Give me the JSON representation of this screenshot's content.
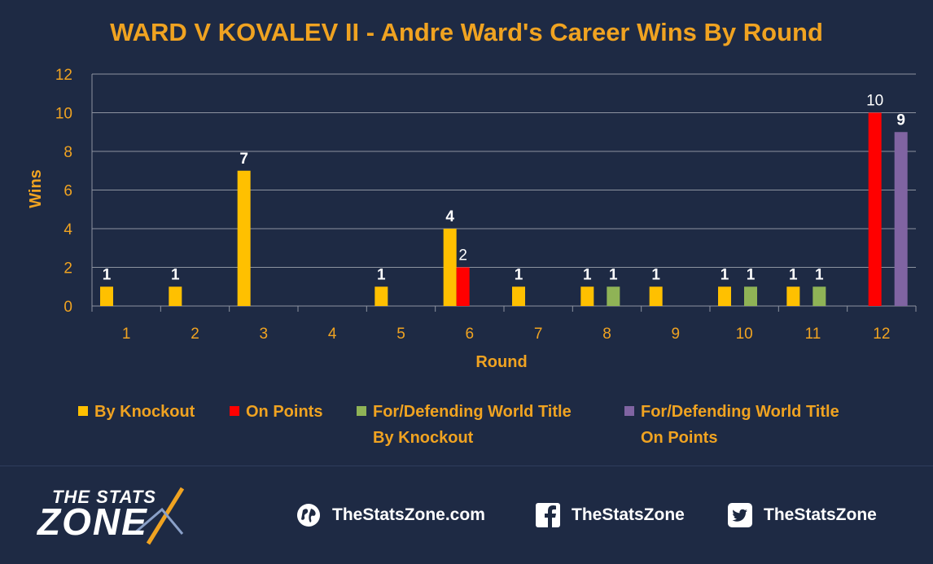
{
  "chart_data": {
    "type": "bar",
    "title": "WARD V KOVALEV II - Andre Ward's Career Wins By Round",
    "xlabel": "Round",
    "ylabel": "Wins",
    "categories": [
      "1",
      "2",
      "3",
      "4",
      "5",
      "6",
      "7",
      "8",
      "9",
      "10",
      "11",
      "12"
    ],
    "ylim": [
      0,
      12
    ],
    "yticks": [
      0,
      2,
      4,
      6,
      8,
      10,
      12
    ],
    "grid": true,
    "legend_position": "bottom",
    "series": [
      {
        "name": "By Knockout",
        "color": "#ffc000",
        "label_color": "#ffffff",
        "values": [
          1,
          1,
          7,
          0,
          1,
          4,
          1,
          1,
          1,
          1,
          1,
          0
        ]
      },
      {
        "name": "On Points",
        "color": "#ff0000",
        "label_color": "#ffffff",
        "values": [
          0,
          0,
          0,
          0,
          0,
          2,
          0,
          0,
          0,
          0,
          0,
          10
        ]
      },
      {
        "name": "For/Defending World Title By Knockout",
        "color": "#8fb356",
        "label_color": "#ffffff",
        "values": [
          0,
          0,
          0,
          0,
          0,
          0,
          0,
          1,
          0,
          1,
          1,
          0
        ]
      },
      {
        "name": "For/Defending World Title On Points",
        "color": "#8064a2",
        "label_color": "#ffffff",
        "values": [
          0,
          0,
          0,
          0,
          0,
          0,
          0,
          0,
          0,
          0,
          0,
          9
        ]
      }
    ],
    "legend_lines": [
      [
        "By Knockout"
      ],
      [
        "On Points"
      ],
      [
        "For/Defending World Title",
        "By Knockout"
      ],
      [
        "For/Defending World Title",
        "On Points"
      ]
    ]
  },
  "footer": {
    "logo_top": "THE STATS",
    "logo_main": "ZONE",
    "website": "TheStatsZone.com",
    "facebook": "TheStatsZone",
    "twitter": "TheStatsZone"
  },
  "icons": {
    "website": "globe-icon",
    "facebook": "facebook-icon",
    "twitter": "twitter-icon"
  },
  "colors": {
    "background": "#1e2a44",
    "accent": "#f0a321",
    "grid": "#8d93a0"
  }
}
